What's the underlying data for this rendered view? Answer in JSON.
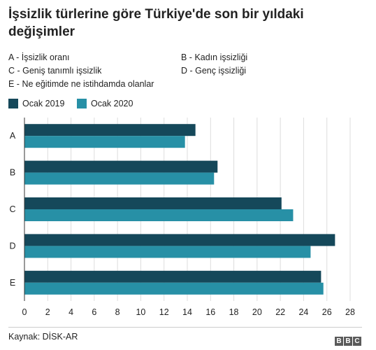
{
  "title": "İşsizlik türlerine göre Türkiye'de son bir yıldaki değişimler",
  "key": [
    "A - İşsizlik oranı",
    "B - Kadın işsizliği",
    "C - Geniş tanımlı işsizlik",
    "D - Genç işsizliği",
    "E - Ne eğitimde ne istihdamda olanlar"
  ],
  "source": "Kaynak: DİSK-AR",
  "logo": {
    "letters": [
      "B",
      "B",
      "C"
    ]
  },
  "colors": {
    "ocak_2019": "#15485a",
    "ocak_2020": "#2790a6",
    "grid": "#dddddd",
    "axis": "#333333"
  },
  "chart_data": {
    "type": "bar",
    "orientation": "horizontal",
    "categories": [
      "A",
      "B",
      "C",
      "D",
      "E"
    ],
    "series": [
      {
        "name": "Ocak 2019",
        "values": [
          14.7,
          16.6,
          22.1,
          26.7,
          25.5
        ]
      },
      {
        "name": "Ocak 2020",
        "values": [
          13.8,
          16.3,
          23.1,
          24.6,
          25.7
        ]
      }
    ],
    "xlim": [
      0,
      28
    ],
    "xticks": [
      0,
      2,
      4,
      6,
      8,
      10,
      12,
      14,
      16,
      18,
      20,
      22,
      24,
      26,
      28
    ],
    "grid": true,
    "legend_position": "top-left"
  }
}
